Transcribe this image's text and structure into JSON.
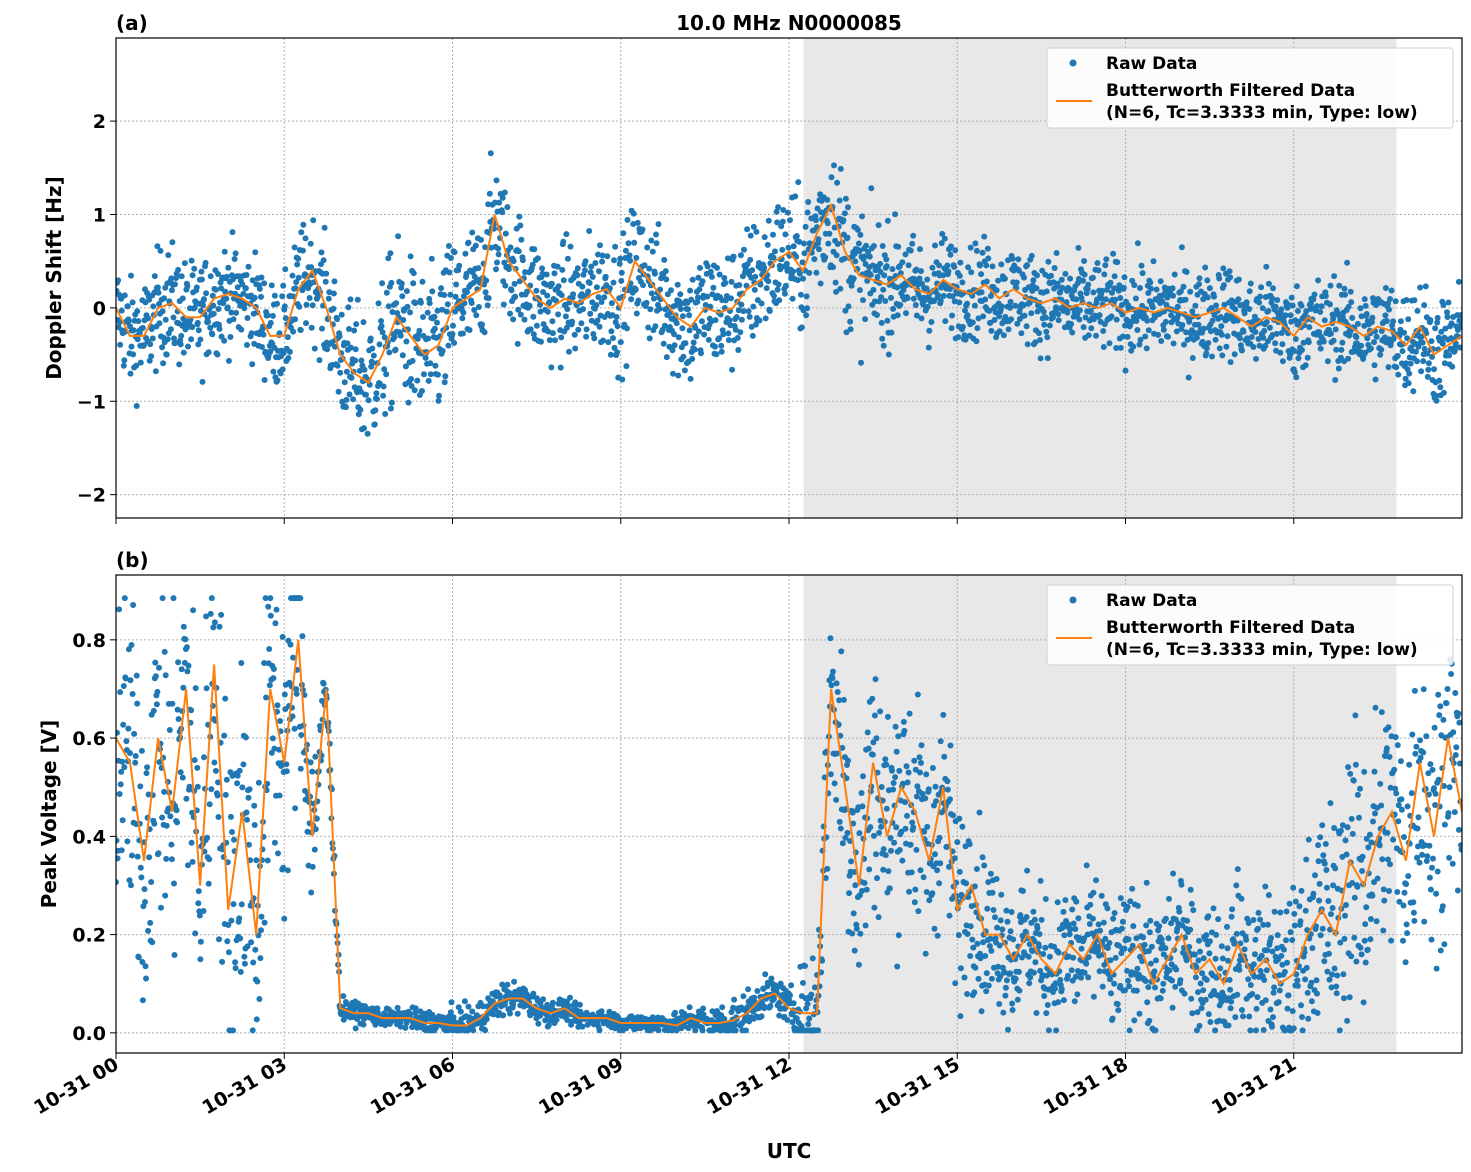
{
  "chart_data": [
    {
      "type": "scatter+line",
      "panel_label": "(a)",
      "title": "10.0 MHz N0000085",
      "xlabel": "",
      "ylabel": "Doppler Shift [Hz]",
      "xlim_hours_utc": [
        0,
        24
      ],
      "ylim": [
        -2.25,
        2.89
      ],
      "yticks": [
        -2,
        -1,
        0,
        1,
        2
      ],
      "ytick_labels": [
        "−2",
        "−1",
        "0",
        "1",
        "2"
      ],
      "grid": true,
      "shaded_interval_hours": [
        12.26,
        22.83
      ],
      "shade_color": "#e8e8e8",
      "legend_position": "top-right",
      "series": [
        {
          "name": "Raw Data",
          "kind": "scatter",
          "color": "#1f77b4",
          "spread_per_hour": [
            0.5,
            0.55,
            0.5,
            0.5,
            0.6,
            0.75,
            0.7,
            0.6,
            0.55,
            0.6,
            0.6,
            0.6,
            0.6,
            0.7,
            0.5,
            0.45,
            0.45,
            0.45,
            0.45,
            0.45,
            0.45,
            0.45,
            0.45,
            0.5,
            0.5
          ]
        },
        {
          "name": "Butterworth Filtered Data\n(N=6, Tc=3.3333 min, Type: low)",
          "kind": "line",
          "color": "#ff7f0e",
          "x_step_hours": 0.25,
          "values": [
            0.0,
            -0.3,
            -0.3,
            0.0,
            0.05,
            -0.1,
            -0.1,
            0.1,
            0.15,
            0.1,
            0.0,
            -0.3,
            -0.3,
            0.2,
            0.4,
            0.0,
            -0.5,
            -0.7,
            -0.8,
            -0.5,
            -0.1,
            -0.3,
            -0.5,
            -0.4,
            0.0,
            0.1,
            0.2,
            1.0,
            0.5,
            0.3,
            0.1,
            0.0,
            0.1,
            0.05,
            0.15,
            0.2,
            0.0,
            0.5,
            0.3,
            0.1,
            -0.1,
            -0.2,
            0.0,
            -0.05,
            0.0,
            0.2,
            0.3,
            0.5,
            0.6,
            0.4,
            0.8,
            1.1,
            0.6,
            0.35,
            0.3,
            0.25,
            0.35,
            0.2,
            0.15,
            0.3,
            0.2,
            0.15,
            0.25,
            0.1,
            0.2,
            0.1,
            0.05,
            0.1,
            0.0,
            0.05,
            0.0,
            0.05,
            -0.05,
            0.0,
            -0.05,
            0.0,
            -0.05,
            -0.1,
            -0.05,
            0.0,
            -0.1,
            -0.2,
            -0.1,
            -0.15,
            -0.3,
            -0.1,
            -0.2,
            -0.15,
            -0.2,
            -0.3,
            -0.2,
            -0.25,
            -0.4,
            -0.2,
            -0.5,
            -0.4,
            -0.3
          ]
        }
      ]
    },
    {
      "type": "scatter+line",
      "panel_label": "(b)",
      "title": "",
      "xlabel": "UTC",
      "ylabel": "Peak Voltage [V]",
      "xlim_hours_utc": [
        0,
        24
      ],
      "ylim": [
        -0.041,
        0.932
      ],
      "yticks": [
        0.0,
        0.2,
        0.4,
        0.6,
        0.8
      ],
      "ytick_labels": [
        "0.0",
        "0.2",
        "0.4",
        "0.6",
        "0.8"
      ],
      "xticks_hours": [
        0,
        3,
        6,
        9,
        12,
        15,
        18,
        21
      ],
      "xtick_labels": [
        "10-31 00",
        "10-31 03",
        "10-31 06",
        "10-31 09",
        "10-31 12",
        "10-31 15",
        "10-31 18",
        "10-31 21"
      ],
      "grid": true,
      "shaded_interval_hours": [
        12.26,
        22.83
      ],
      "shade_color": "#e8e8e8",
      "legend_position": "top-right",
      "series": [
        {
          "name": "Raw Data",
          "kind": "scatter",
          "color": "#1f77b4",
          "spread_per_hour": [
            0.3,
            0.32,
            0.32,
            0.3,
            0.02,
            0.015,
            0.03,
            0.03,
            0.02,
            0.015,
            0.02,
            0.04,
            0.03,
            0.25,
            0.22,
            0.18,
            0.12,
            0.12,
            0.12,
            0.12,
            0.12,
            0.15,
            0.25,
            0.25,
            0.25
          ]
        },
        {
          "name": "Butterworth Filtered Data\n(N=6, Tc=3.3333 min, Type: low)",
          "kind": "line",
          "color": "#ff7f0e",
          "x_step_hours": 0.25,
          "values": [
            0.6,
            0.55,
            0.35,
            0.6,
            0.45,
            0.7,
            0.3,
            0.75,
            0.25,
            0.45,
            0.2,
            0.7,
            0.55,
            0.8,
            0.4,
            0.7,
            0.05,
            0.04,
            0.04,
            0.03,
            0.03,
            0.03,
            0.02,
            0.02,
            0.015,
            0.015,
            0.03,
            0.06,
            0.07,
            0.07,
            0.05,
            0.04,
            0.05,
            0.03,
            0.03,
            0.03,
            0.02,
            0.02,
            0.02,
            0.02,
            0.015,
            0.03,
            0.02,
            0.02,
            0.025,
            0.04,
            0.07,
            0.08,
            0.05,
            0.04,
            0.04,
            0.7,
            0.5,
            0.3,
            0.55,
            0.4,
            0.5,
            0.45,
            0.35,
            0.5,
            0.25,
            0.3,
            0.2,
            0.2,
            0.15,
            0.2,
            0.15,
            0.12,
            0.18,
            0.15,
            0.2,
            0.12,
            0.15,
            0.18,
            0.1,
            0.15,
            0.2,
            0.12,
            0.15,
            0.1,
            0.18,
            0.12,
            0.15,
            0.1,
            0.12,
            0.2,
            0.25,
            0.2,
            0.35,
            0.3,
            0.4,
            0.45,
            0.35,
            0.55,
            0.4,
            0.6,
            0.45
          ]
        }
      ]
    }
  ],
  "legend": {
    "raw_label": "Raw Data",
    "filtered_line1": "Butterworth Filtered Data",
    "filtered_line2": "(N=6, Tc=3.3333 min, Type: low)"
  }
}
